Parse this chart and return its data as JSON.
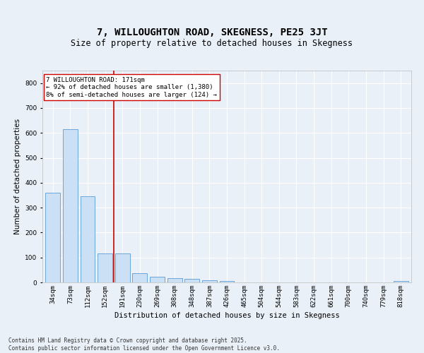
{
  "title": "7, WILLOUGHTON ROAD, SKEGNESS, PE25 3JT",
  "subtitle": "Size of property relative to detached houses in Skegness",
  "xlabel": "Distribution of detached houses by size in Skegness",
  "ylabel": "Number of detached properties",
  "categories": [
    "34sqm",
    "73sqm",
    "112sqm",
    "152sqm",
    "191sqm",
    "230sqm",
    "269sqm",
    "308sqm",
    "348sqm",
    "387sqm",
    "426sqm",
    "465sqm",
    "504sqm",
    "544sqm",
    "583sqm",
    "622sqm",
    "661sqm",
    "700sqm",
    "740sqm",
    "779sqm",
    "818sqm"
  ],
  "values": [
    360,
    615,
    345,
    117,
    117,
    38,
    22,
    17,
    13,
    8,
    5,
    0,
    0,
    0,
    0,
    0,
    0,
    0,
    0,
    0,
    7
  ],
  "bar_color": "#cce0f5",
  "bar_edge_color": "#5b9bd5",
  "ylim": [
    0,
    850
  ],
  "yticks": [
    0,
    100,
    200,
    300,
    400,
    500,
    600,
    700,
    800
  ],
  "vline_x": 3.5,
  "vline_color": "#cc0000",
  "annotation_text": "7 WILLOUGHTON ROAD: 171sqm\n← 92% of detached houses are smaller (1,380)\n8% of semi-detached houses are larger (124) →",
  "annotation_box_color": "#ffffff",
  "annotation_box_edgecolor": "#cc0000",
  "footer_line1": "Contains HM Land Registry data © Crown copyright and database right 2025.",
  "footer_line2": "Contains public sector information licensed under the Open Government Licence v3.0.",
  "bg_color": "#eaf0f8",
  "plot_bg_color": "#eaf0f8",
  "grid_color": "#ffffff",
  "title_fontsize": 10,
  "subtitle_fontsize": 8.5,
  "label_fontsize": 7.5,
  "tick_fontsize": 6.5,
  "footer_fontsize": 5.5,
  "annot_fontsize": 6.5
}
